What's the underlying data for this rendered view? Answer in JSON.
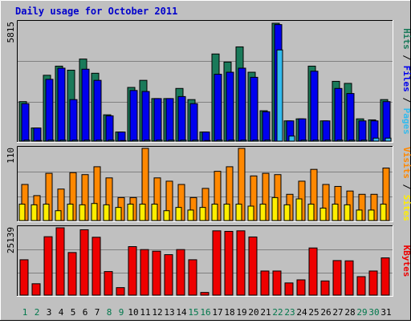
{
  "chart_data": {
    "type": "bar",
    "title": "Daily usage for October 2011",
    "days": [
      1,
      2,
      3,
      4,
      5,
      6,
      7,
      8,
      9,
      10,
      11,
      12,
      13,
      14,
      15,
      16,
      17,
      18,
      19,
      20,
      21,
      22,
      23,
      24,
      25,
      26,
      27,
      28,
      29,
      30,
      31
    ],
    "weekend_days": [
      1,
      2,
      8,
      9,
      15,
      16,
      22,
      23,
      29,
      30
    ],
    "colors": {
      "background": "#c0c0c0",
      "title": "#0000cc",
      "hits": "#1a7a5a",
      "files": "#0000ee",
      "pages": "#33bbee",
      "visits": "#ff8800",
      "sites": "#ffee00",
      "kbytes": "#ee0000",
      "weekend_label": "#00774b",
      "weekday_label": "#000000"
    },
    "panels": [
      {
        "id": "hits",
        "max_label": "5815",
        "legend": [
          {
            "text": "Hits",
            "color": "#1a7a5a"
          },
          {
            "text": " / ",
            "color": "#000000"
          },
          {
            "text": "Files",
            "color": "#0000ee"
          },
          {
            "text": " / ",
            "color": "#000000"
          },
          {
            "text": "Pages",
            "color": "#33bbee"
          }
        ],
        "max": 5815,
        "series": [
          {
            "name": "Hits",
            "values": [
              1950,
              650,
              3250,
              3700,
              3500,
              4050,
              3350,
              1300,
              450,
              2650,
              3000,
              2100,
              2100,
              2600,
              2050,
              450,
              4300,
              3900,
              4650,
              3400,
              1500,
              5815,
              1000,
              1100,
              3700,
              1000,
              2950,
              2850,
              1100,
              1050,
              2050
            ]
          },
          {
            "name": "Files",
            "values": [
              1850,
              650,
              3050,
              3600,
              2050,
              3550,
              3000,
              1250,
              450,
              2500,
              2450,
              2100,
              2100,
              2200,
              1850,
              450,
              3300,
              3400,
              3600,
              3150,
              1450,
              5750,
              1000,
              1100,
              3450,
              1000,
              2600,
              2350,
              1000,
              1000,
              1950
            ]
          },
          {
            "name": "Pages",
            "values": [
              50,
              30,
              50,
              50,
              50,
              50,
              50,
              50,
              30,
              50,
              50,
              50,
              50,
              50,
              50,
              30,
              50,
              50,
              50,
              50,
              50,
              4500,
              250,
              50,
              50,
              50,
              50,
              50,
              50,
              150,
              150
            ]
          }
        ]
      },
      {
        "id": "visits",
        "max_label": "110",
        "legend": [
          {
            "text": "Visits",
            "color": "#ff8800"
          },
          {
            "text": " / ",
            "color": "#000000"
          },
          {
            "text": "Sites",
            "color": "#ffee00"
          }
        ],
        "max": 110,
        "series": [
          {
            "name": "Visits",
            "values": [
              55,
              38,
              72,
              48,
              73,
              70,
              82,
              65,
              35,
              35,
              110,
              65,
              60,
              55,
              35,
              49,
              75,
              82,
              110,
              68,
              72,
              70,
              40,
              60,
              78,
              55,
              52,
              45,
              40,
              40,
              80
            ]
          },
          {
            "name": "Sites",
            "values": [
              25,
              24,
              25,
              15,
              25,
              24,
              26,
              24,
              20,
              25,
              25,
              25,
              15,
              20,
              16,
              20,
              25,
              25,
              25,
              22,
              25,
              35,
              24,
              33,
              25,
              19,
              25,
              24,
              16,
              16,
              25
            ]
          }
        ]
      },
      {
        "id": "kbytes",
        "max_label": "25139",
        "legend": [
          {
            "text": "KBytes",
            "color": "#ee0000"
          }
        ],
        "max": 25139,
        "series": [
          {
            "name": "KBytes",
            "values": [
              13200,
              4250,
              21800,
              25139,
              15900,
              24400,
              21600,
              8800,
              2800,
              18100,
              17000,
              16400,
              15100,
              17000,
              13200,
              1000,
              24000,
              23800,
              24000,
              21700,
              9000,
              9000,
              4550,
              5700,
              17600,
              5300,
              12900,
              12800,
              6900,
              9000,
              13900
            ]
          }
        ]
      }
    ]
  }
}
